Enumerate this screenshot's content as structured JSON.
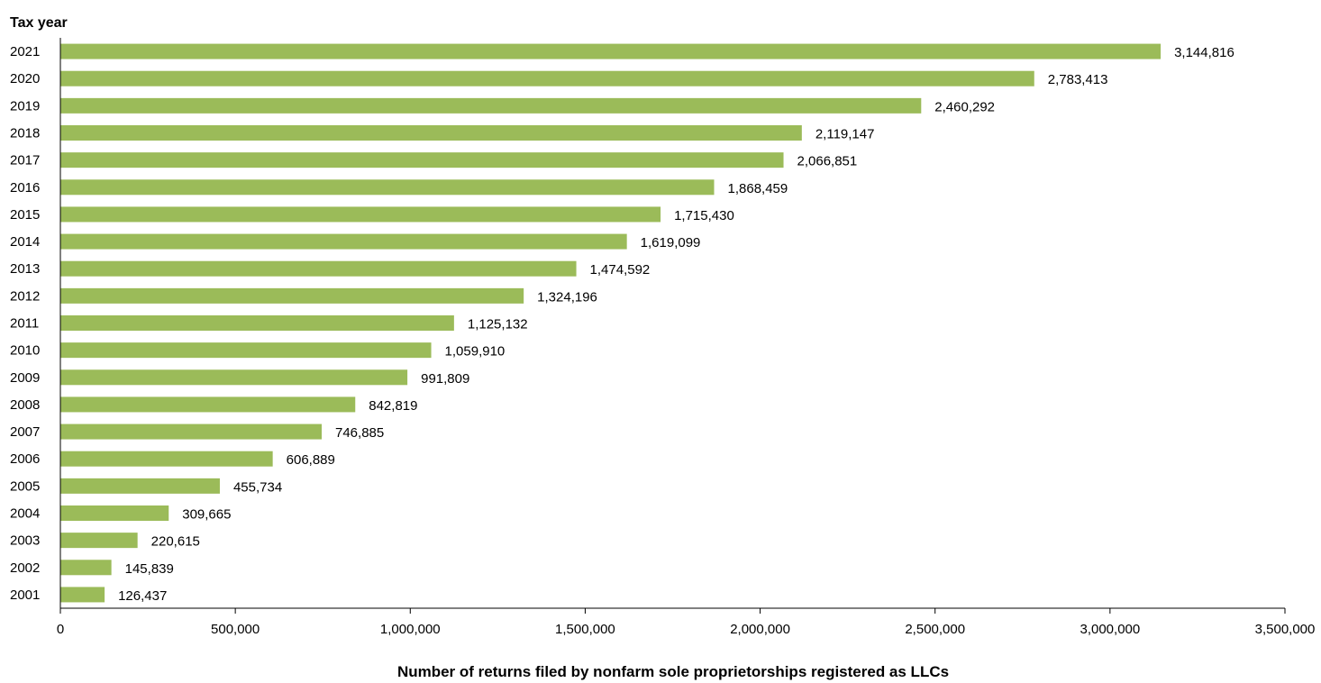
{
  "chart_data": {
    "type": "bar",
    "orientation": "horizontal",
    "ylabel": "Tax year",
    "xlabel": "Number of returns filed by nonfarm sole proprietorships registered as LLCs",
    "categories": [
      "2021",
      "2020",
      "2019",
      "2018",
      "2017",
      "2016",
      "2015",
      "2014",
      "2013",
      "2012",
      "2011",
      "2010",
      "2009",
      "2008",
      "2007",
      "2006",
      "2005",
      "2004",
      "2003",
      "2002",
      "2001"
    ],
    "values": [
      3144816,
      2783413,
      2460292,
      2119147,
      2066851,
      1868459,
      1715430,
      1619099,
      1474592,
      1324196,
      1125132,
      1059910,
      991809,
      842819,
      746885,
      606889,
      455734,
      309665,
      220615,
      145839,
      126437
    ],
    "value_labels": [
      "3,144,816",
      "2,783,413",
      "2,460,292",
      "2,119,147",
      "2,066,851",
      "1,868,459",
      "1,715,430",
      "1,619,099",
      "1,474,592",
      "1,324,196",
      "1,125,132",
      "1,059,910",
      "991,809",
      "842,819",
      "746,885",
      "606,889",
      "455,734",
      "309,665",
      "220,615",
      "145,839",
      "126,437"
    ],
    "xlim": [
      0,
      3500000
    ],
    "xticks": [
      0,
      500000,
      1000000,
      1500000,
      2000000,
      2500000,
      3000000,
      3500000
    ],
    "xtick_labels": [
      "0",
      "500,000",
      "1,000,000",
      "1,500,000",
      "2,000,000",
      "2,500,000",
      "3,000,000",
      "3,500,000"
    ],
    "grid": false,
    "bar_color": "#9BBB59"
  }
}
